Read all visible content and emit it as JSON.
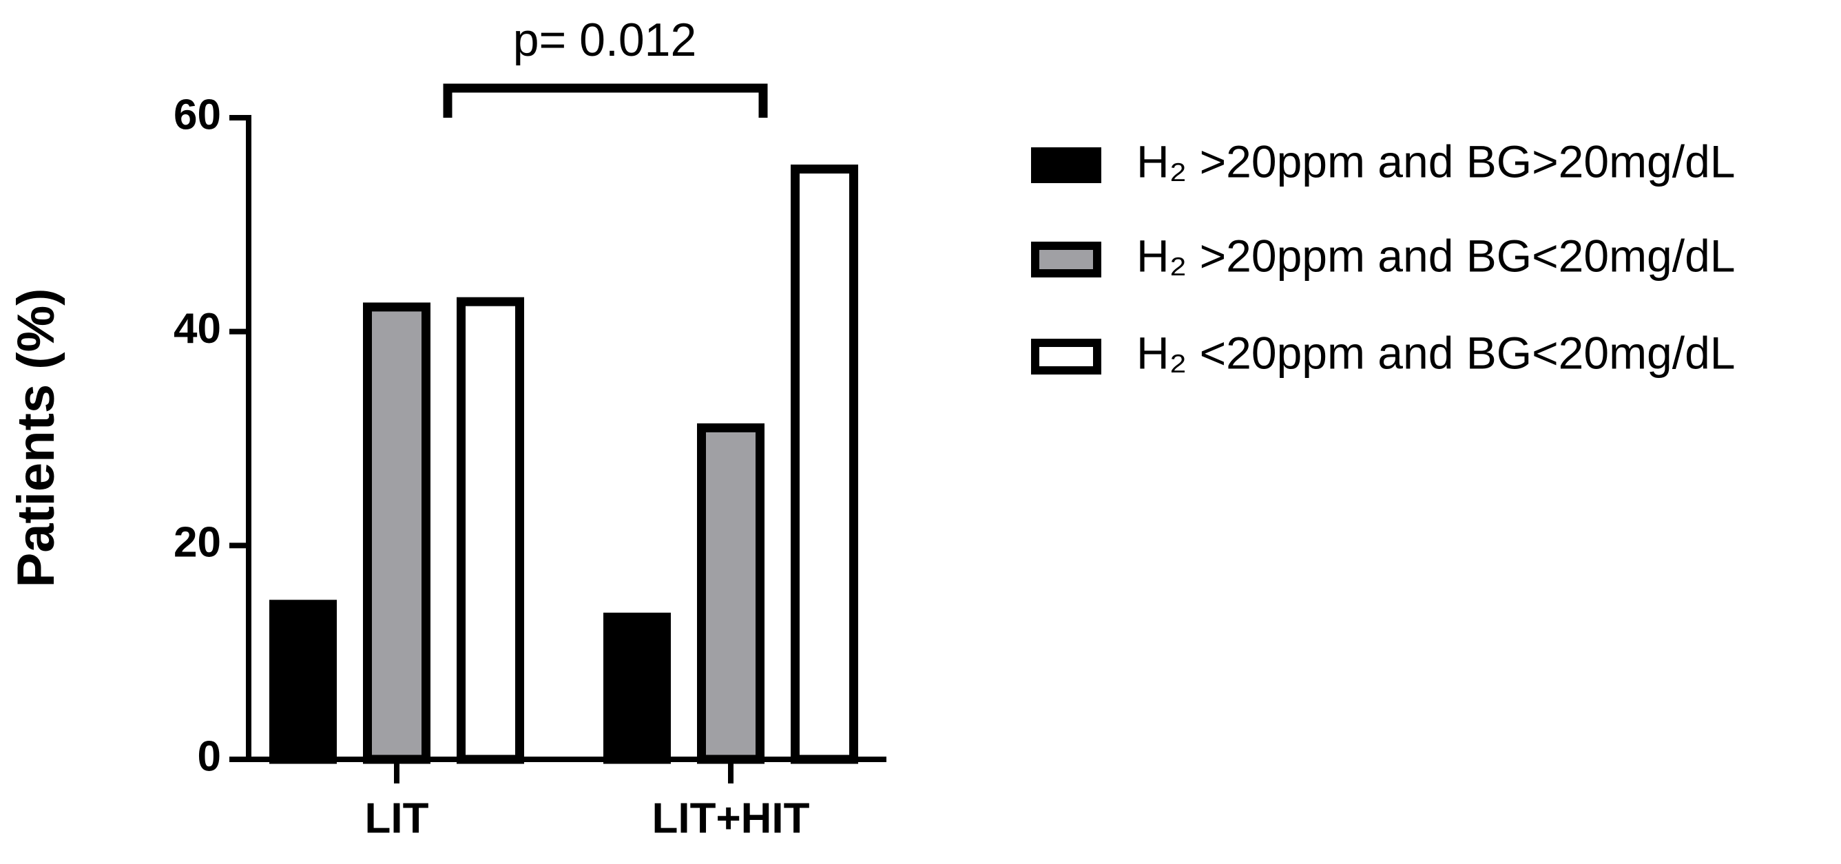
{
  "chart_data": {
    "type": "bar",
    "categories": [
      "LIT",
      "LIT+HIT"
    ],
    "series": [
      {
        "name": "H₂ >20ppm and BG>20mg/dL",
        "color": "#000000",
        "values": [
          14.5,
          13.3
        ]
      },
      {
        "name": "H₂ >20ppm and BG<20mg/dL",
        "color": "#a0a0a4",
        "values": [
          42.3,
          31
        ]
      },
      {
        "name": "H₂ <20ppm and BG<20mg/dL",
        "color": "#ffffff",
        "values": [
          42.8,
          55.2
        ]
      }
    ],
    "y_label": "Patients (%)",
    "annotation": "p= 0.012",
    "ylim": [
      0,
      60
    ],
    "yticks": [
      0,
      20,
      40,
      60
    ],
    "grid": false,
    "legend": "right"
  }
}
